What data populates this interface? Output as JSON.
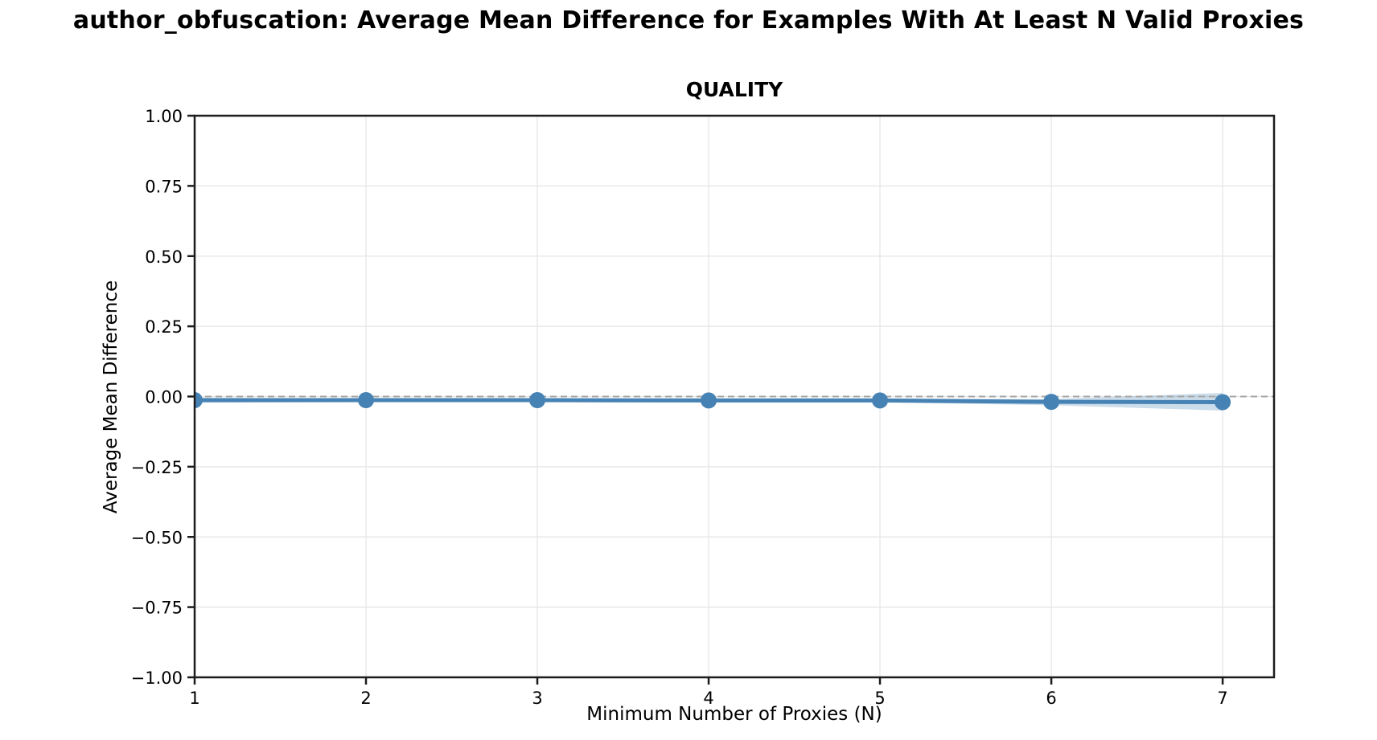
{
  "figure": {
    "title": "author_obfuscation: Average Mean Difference for Examples With At Least N Valid Proxies"
  },
  "chart_data": {
    "type": "line",
    "title": "QUALITY",
    "xlabel": "Minimum Number of Proxies (N)",
    "ylabel": "Average Mean Difference",
    "x": [
      1,
      2,
      3,
      4,
      5,
      6,
      7
    ],
    "y": [
      -0.013,
      -0.013,
      -0.013,
      -0.014,
      -0.014,
      -0.019,
      -0.02
    ],
    "band_upper": [
      -0.005,
      -0.007,
      -0.007,
      -0.008,
      -0.008,
      -0.009,
      0.013
    ],
    "band_lower": [
      -0.022,
      -0.02,
      -0.02,
      -0.02,
      -0.021,
      -0.031,
      -0.05
    ],
    "xlim": [
      1,
      7.3
    ],
    "ylim": [
      -1,
      1
    ],
    "xticks": {
      "values": [
        1,
        2,
        3,
        4,
        5,
        6,
        7
      ],
      "labels": [
        "1",
        "2",
        "3",
        "4",
        "5",
        "6",
        "7"
      ]
    },
    "yticks": {
      "values": [
        1.0,
        0.75,
        0.5,
        0.25,
        0.0,
        -0.25,
        -0.5,
        -0.75,
        -1.0
      ],
      "labels": [
        "1.00",
        "0.75",
        "0.50",
        "0.25",
        "0.00",
        "−0.25",
        "−0.50",
        "−0.75",
        "−1.00"
      ]
    },
    "reference_line": {
      "y": 0,
      "style": "dashed",
      "color": "#a6a6a6"
    },
    "grid": true,
    "legend": false,
    "colors": {
      "line": "#4682b4",
      "marker": "#4682b4",
      "band": "rgba(70,130,180,0.28)",
      "grid": "#e8e8e8",
      "spine": "#1c1c1c",
      "text": "#000000"
    }
  }
}
